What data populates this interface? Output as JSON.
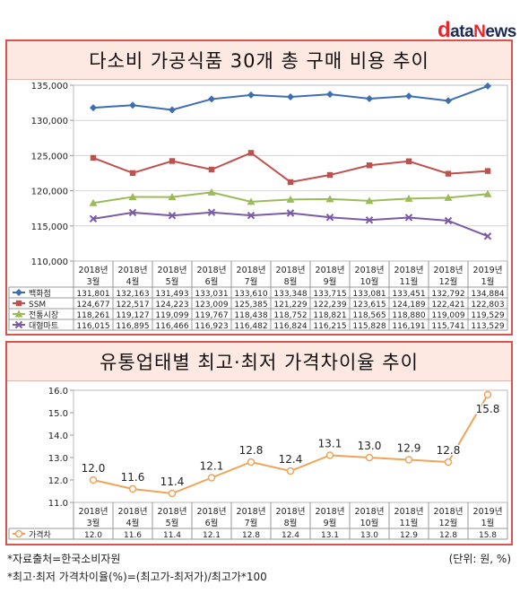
{
  "logo": {
    "d": "d",
    "ata": "ata",
    "ne": "N",
    "ws": "ews"
  },
  "chart_data": [
    {
      "type": "line",
      "title": "다소비 가공식품 30개 총 구매 비용 추이",
      "categories": [
        "2018년|3월",
        "2018년|4월",
        "2018년|5월",
        "2018년|6월",
        "2018년|7월",
        "2018년|8월",
        "2018년|9월",
        "2018년|10월",
        "2018년|11월",
        "2018년|12월",
        "2019년|1월"
      ],
      "ylim": [
        110000,
        135000
      ],
      "yticks": [
        "110,000",
        "115,000",
        "120,000",
        "125,000",
        "130,000",
        "135,000"
      ],
      "grid": true,
      "series": [
        {
          "name": "백화점",
          "color": "#3d6db5",
          "marker": "diamond",
          "values": [
            131801,
            132163,
            131493,
            133031,
            133610,
            133348,
            133715,
            133081,
            133451,
            132792,
            134884
          ],
          "labels": [
            "131,801",
            "132,163",
            "131,493",
            "133,031",
            "133,610",
            "133,348",
            "133,715",
            "133,081",
            "133,451",
            "132,792",
            "134,884"
          ]
        },
        {
          "name": "SSM",
          "color": "#c0504d",
          "marker": "square",
          "values": [
            124677,
            122517,
            124223,
            123009,
            125385,
            121229,
            122239,
            123615,
            124189,
            122421,
            122803
          ],
          "labels": [
            "124,677",
            "122,517",
            "124,223",
            "123,009",
            "125,385",
            "121,229",
            "122,239",
            "123,615",
            "124,189",
            "122,421",
            "122,803"
          ]
        },
        {
          "name": "전통시장",
          "color": "#9bbb59",
          "marker": "triangle",
          "values": [
            118261,
            119127,
            119099,
            119767,
            118438,
            118752,
            118821,
            118565,
            118880,
            119009,
            119529
          ],
          "labels": [
            "118,261",
            "119,127",
            "119,099",
            "119,767",
            "118,438",
            "118,752",
            "118,821",
            "118,565",
            "118,880",
            "119,009",
            "119,529"
          ]
        },
        {
          "name": "대형마트",
          "color": "#7a5ba6",
          "marker": "x",
          "values": [
            116015,
            116895,
            116466,
            116923,
            116482,
            116824,
            116215,
            115828,
            116191,
            115741,
            113529
          ],
          "labels": [
            "116,015",
            "116,895",
            "116,466",
            "116,923",
            "116,482",
            "116,824",
            "116,215",
            "115,828",
            "116,191",
            "115,741",
            "113,529"
          ]
        }
      ]
    },
    {
      "type": "line",
      "title": "유통업태별 최고·최저 가격차이율 추이",
      "categories": [
        "2018년|3월",
        "2018년|4월",
        "2018년|5월",
        "2018년|6월",
        "2018년|7월",
        "2018년|8월",
        "2018년|9월",
        "2018년|10월",
        "2018년|11월",
        "2018년|12월",
        "2019년|1월"
      ],
      "ylim": [
        11.0,
        16.0
      ],
      "yticks": [
        "11.0",
        "12.0",
        "13.0",
        "14.0",
        "15.0",
        "16.0"
      ],
      "grid": false,
      "series": [
        {
          "name": "가격차",
          "color": "#f0a35a",
          "marker": "circle",
          "values": [
            12.0,
            11.6,
            11.4,
            12.1,
            12.8,
            12.4,
            13.1,
            13.0,
            12.9,
            12.8,
            15.8
          ],
          "labels": [
            "12.0",
            "11.6",
            "11.4",
            "12.1",
            "12.8",
            "12.4",
            "13.1",
            "13.0",
            "12.9",
            "12.8",
            "15.8"
          ]
        }
      ]
    }
  ],
  "footnotes": {
    "source": "*자료출처=한국소비자원",
    "unit": "(단위: 원, %)",
    "formula": "*최고·최저 가격차이율(%)=(최고가-최저가)/최고가*100"
  }
}
